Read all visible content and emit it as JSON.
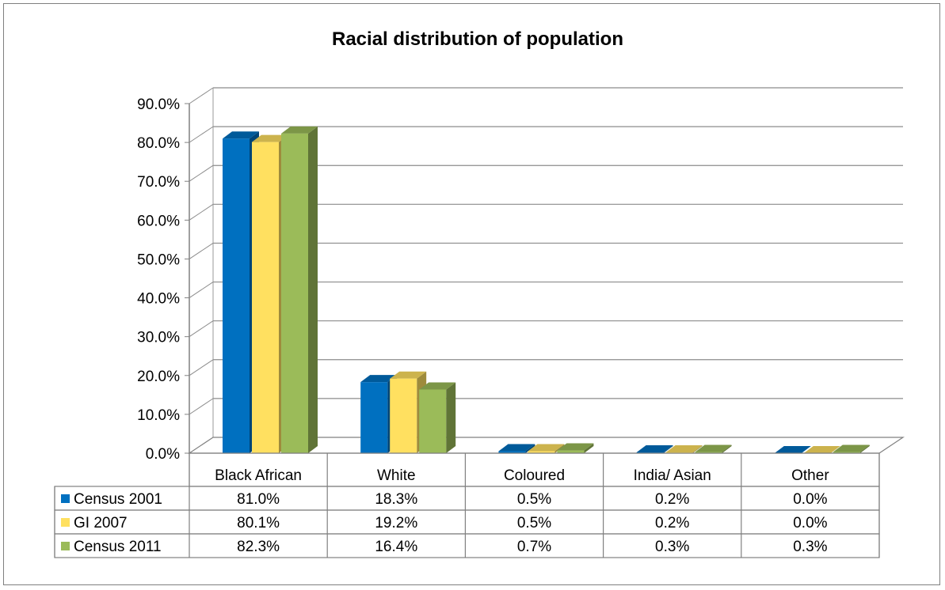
{
  "chart_data": {
    "type": "bar",
    "title": "Racial distribution of population",
    "xlabel": "",
    "ylabel": "",
    "ylim": [
      0,
      90
    ],
    "yticks": [
      "0.0%",
      "10.0%",
      "20.0%",
      "30.0%",
      "40.0%",
      "50.0%",
      "60.0%",
      "70.0%",
      "80.0%",
      "90.0%"
    ],
    "categories": [
      "Black African",
      "White",
      "Coloured",
      "India/ Asian",
      "Other"
    ],
    "series": [
      {
        "name": "Census 2001",
        "color": "#0070c0",
        "values": [
          81.0,
          18.3,
          0.5,
          0.2,
          0.0
        ],
        "labels": [
          "81.0%",
          "18.3%",
          "0.5%",
          "0.2%",
          "0.0%"
        ]
      },
      {
        "name": "GI 2007",
        "color": "#ffe060",
        "values": [
          80.1,
          19.2,
          0.5,
          0.2,
          0.0
        ],
        "labels": [
          "80.1%",
          "19.2%",
          "0.5%",
          "0.2%",
          "0.0%"
        ]
      },
      {
        "name": "Census 2011",
        "color": "#9bbb59",
        "values": [
          82.3,
          16.4,
          0.7,
          0.3,
          0.3
        ],
        "labels": [
          "82.3%",
          "16.4%",
          "0.7%",
          "0.3%",
          "0.3%"
        ]
      }
    ],
    "grid": true,
    "legend": "data-table",
    "style": "3d-clustered-column"
  }
}
